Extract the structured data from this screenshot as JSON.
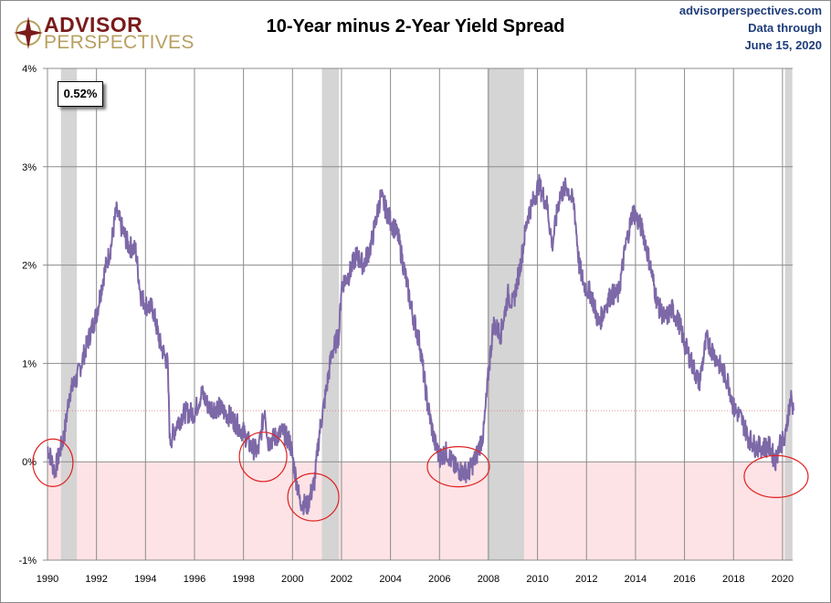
{
  "brand": {
    "line1": "ADVISOR",
    "line2": "PERSPECTIVES"
  },
  "source": {
    "site": "advisorperspectives.com",
    "note1": "Data through",
    "note2": "June 15, 2020"
  },
  "chart_data": {
    "type": "line",
    "title": "10-Year minus 2-Year Yield Spread",
    "xlabel": "",
    "ylabel": "",
    "xlim": [
      1990,
      2020.45
    ],
    "ylim": [
      -1,
      4
    ],
    "x_ticks": [
      "1990",
      "1992",
      "1994",
      "1996",
      "1998",
      "2000",
      "2002",
      "2004",
      "2006",
      "2008",
      "2010",
      "2012",
      "2014",
      "2016",
      "2018",
      "2020"
    ],
    "y_ticks": [
      "-1%",
      "0%",
      "1%",
      "2%",
      "3%",
      "4%"
    ],
    "grid": true,
    "line_color": "#7d68a8",
    "current_value_label": "0.52%",
    "current_value": 0.52,
    "negative_zone_color": "#fde3e5",
    "recession_color": "#d3d3d3",
    "recessions": [
      [
        1990.55,
        1991.2
      ],
      [
        2001.2,
        2001.9
      ],
      [
        2007.95,
        2009.45
      ],
      [
        2020.1,
        2020.4
      ]
    ],
    "circled_inversions": [
      [
        1990.22,
        -0.01
      ],
      [
        1998.8,
        0.05
      ],
      [
        2000.85,
        -0.36
      ],
      [
        2006.77,
        -0.05
      ],
      [
        2019.74,
        -0.15
      ]
    ],
    "series": [
      {
        "x": [
          1990.0,
          1990.3,
          1990.5,
          1990.7,
          1990.9,
          1991.2,
          1991.5,
          1991.8,
          1992.0,
          1992.3,
          1992.6,
          1992.8,
          1993.0,
          1993.3,
          1993.6,
          1993.8,
          1994.0,
          1994.3,
          1994.6,
          1994.9,
          1995.0,
          1995.3,
          1995.6,
          1996.0,
          1996.3,
          1996.6,
          1997.0,
          1997.5,
          1998.0,
          1998.3,
          1998.6,
          1998.87,
          1999.0,
          1999.3,
          1999.6,
          1999.9,
          2000.1,
          2000.3,
          2000.6,
          2000.9,
          2001.1,
          2001.3,
          2001.6,
          2001.9,
          2002.0,
          2002.3,
          2002.6,
          2002.9,
          2003.2,
          2003.6,
          2004.0,
          2004.3,
          2004.6,
          2004.9,
          2005.2,
          2005.5,
          2005.8,
          2006.0,
          2006.3,
          2006.6,
          2006.9,
          2007.2,
          2007.5,
          2007.8,
          2008.0,
          2008.2,
          2008.5,
          2008.8,
          2009.0,
          2009.3,
          2009.6,
          2009.9,
          2010.05,
          2010.4,
          2010.6,
          2010.9,
          2011.2,
          2011.5,
          2011.7,
          2011.9,
          2012.2,
          2012.5,
          2012.8,
          2013.0,
          2013.3,
          2013.6,
          2013.9,
          2014.0,
          2014.3,
          2014.6,
          2014.9,
          2015.2,
          2015.5,
          2015.8,
          2016.0,
          2016.3,
          2016.6,
          2016.9,
          2017.2,
          2017.5,
          2017.8,
          2018.0,
          2018.3,
          2018.6,
          2018.9,
          2019.2,
          2019.5,
          2019.7,
          2019.9,
          2020.1,
          2020.2,
          2020.35,
          2020.45
        ],
        "values": [
          0.15,
          -0.1,
          0.1,
          0.3,
          0.7,
          0.85,
          1.1,
          1.35,
          1.5,
          1.9,
          2.2,
          2.55,
          2.4,
          2.2,
          2.15,
          1.7,
          1.6,
          1.55,
          1.2,
          1.0,
          0.2,
          0.4,
          0.5,
          0.5,
          0.7,
          0.55,
          0.55,
          0.45,
          0.3,
          0.15,
          0.1,
          0.55,
          0.2,
          0.25,
          0.3,
          0.2,
          -0.1,
          -0.4,
          -0.45,
          -0.2,
          0.3,
          0.6,
          1.1,
          1.3,
          1.8,
          1.9,
          2.1,
          2.0,
          2.2,
          2.7,
          2.45,
          2.3,
          1.9,
          1.5,
          1.2,
          0.6,
          0.2,
          0.05,
          0.1,
          -0.05,
          -0.1,
          -0.1,
          0.05,
          0.3,
          0.9,
          1.4,
          1.3,
          1.7,
          1.6,
          2.0,
          2.5,
          2.7,
          2.82,
          2.6,
          2.2,
          2.7,
          2.8,
          2.6,
          2.0,
          1.8,
          1.7,
          1.4,
          1.6,
          1.7,
          1.7,
          2.2,
          2.55,
          2.5,
          2.35,
          2.0,
          1.6,
          1.45,
          1.55,
          1.4,
          1.2,
          1.0,
          0.8,
          1.25,
          1.1,
          0.95,
          0.8,
          0.55,
          0.45,
          0.25,
          0.15,
          0.15,
          0.15,
          0.0,
          0.2,
          0.2,
          0.45,
          0.65,
          0.52
        ]
      }
    ]
  }
}
